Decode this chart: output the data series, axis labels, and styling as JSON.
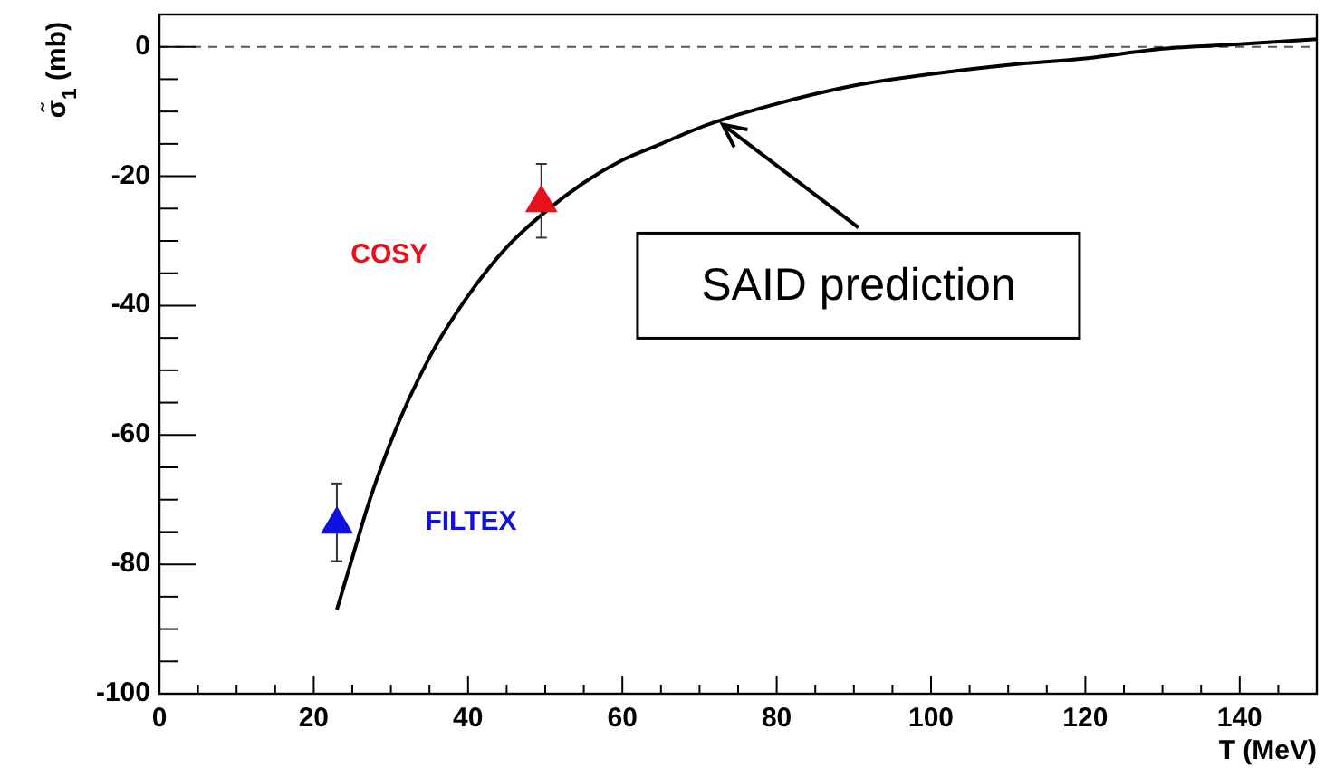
{
  "chart_data": {
    "type": "scatter",
    "xlabel": "T (MeV)",
    "ylabel": "σ̃$_{1}$ (mb)",
    "xlim": [
      0,
      150
    ],
    "ylim": [
      -100,
      5
    ],
    "xticks": [
      0,
      {
        "value": 5,
        "label": null
      },
      {
        "value": 10,
        "label": null
      },
      {
        "value": 15,
        "label": null
      },
      20,
      {
        "value": 25,
        "label": null
      },
      {
        "value": 30,
        "label": null
      },
      {
        "value": 35,
        "label": null
      },
      40,
      {
        "value": 45,
        "label": null
      },
      {
        "value": 50,
        "label": null
      },
      {
        "value": 55,
        "label": null
      },
      60,
      {
        "value": 65,
        "label": null
      },
      {
        "value": 70,
        "label": null
      },
      {
        "value": 75,
        "label": null
      },
      80,
      {
        "value": 85,
        "label": null
      },
      {
        "value": 90,
        "label": null
      },
      {
        "value": 95,
        "label": null
      },
      100,
      {
        "value": 105,
        "label": null
      },
      {
        "value": 110,
        "label": null
      },
      {
        "value": 115,
        "label": null
      },
      120,
      {
        "value": 125,
        "label": null
      },
      {
        "value": 130,
        "label": null
      },
      {
        "value": 135,
        "label": null
      },
      140,
      {
        "value": 145,
        "label": null
      }
    ],
    "yticks": [
      -100,
      {
        "value": -95,
        "label": null
      },
      {
        "value": -90,
        "label": null
      },
      {
        "value": -85,
        "label": null
      },
      -80,
      {
        "value": -75,
        "label": null
      },
      {
        "value": -70,
        "label": null
      },
      {
        "value": -65,
        "label": null
      },
      -60,
      {
        "value": -55,
        "label": null
      },
      {
        "value": -50,
        "label": null
      },
      {
        "value": -45,
        "label": null
      },
      -40,
      {
        "value": -35,
        "label": null
      },
      {
        "value": -30,
        "label": null
      },
      {
        "value": -25,
        "label": null
      },
      -20,
      {
        "value": -15,
        "label": null
      },
      {
        "value": -10,
        "label": null
      },
      {
        "value": -5,
        "label": null
      },
      0
    ],
    "series": [
      {
        "type": "line",
        "color": "#000000",
        "x": [
          23,
          25,
          27,
          30,
          35,
          40,
          45,
          50,
          55,
          60,
          65,
          70,
          75,
          80,
          90,
          100,
          110,
          120,
          130,
          140,
          150
        ],
        "values": [
          -87,
          -79,
          -71,
          -61,
          -48,
          -38.5,
          -31,
          -25.5,
          -21,
          -17.5,
          -15,
          -12.5,
          -10.5,
          -8.8,
          -6,
          -4.2,
          -2.8,
          -1.8,
          -0.3,
          0.4,
          1.2
        ]
      },
      {
        "name": "COSY",
        "marker": "triangle",
        "color": "#e8101a",
        "x": [
          49.5
        ],
        "values": [
          -23.8
        ],
        "errors": [
          5.7
        ]
      },
      {
        "name": "FILTEX",
        "marker": "triangle",
        "color": "#1010e0",
        "x": [
          23
        ],
        "values": [
          -73.5
        ],
        "errors": [
          6
        ]
      }
    ],
    "ref_lines": [
      {
        "axis": "y",
        "value": 0,
        "line_style": "dashed",
        "color": "#555555"
      }
    ],
    "annotations": [
      {
        "text": "SAID prediction",
        "x": 73,
        "y": -12
      }
    ]
  }
}
